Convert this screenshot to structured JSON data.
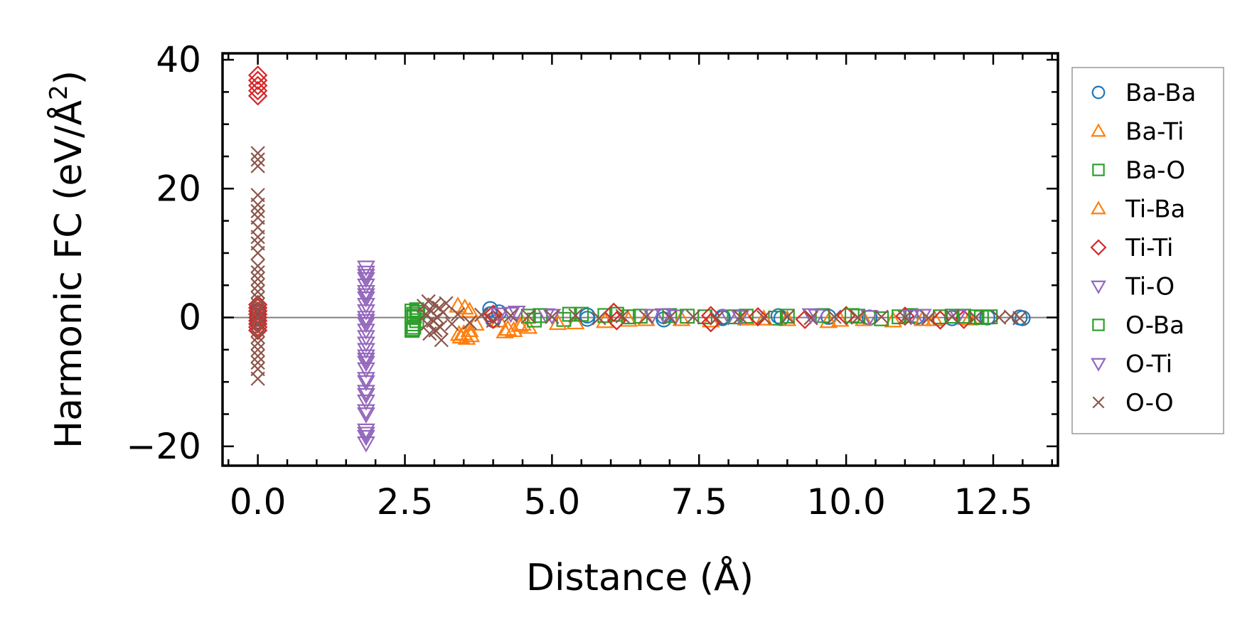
{
  "chart_data": {
    "type": "scatter",
    "xlabel": "Distance (Å)",
    "ylabel_main": "Harmonic FC (eV/Å",
    "ylabel_sup": "2",
    "ylabel_close": ")",
    "xlim": [
      -0.6,
      13.6
    ],
    "ylim": [
      -23,
      41
    ],
    "xticks": [
      0.0,
      2.5,
      5.0,
      7.5,
      10.0,
      12.5
    ],
    "xtick_labels": [
      "0.0",
      "2.5",
      "5.0",
      "7.5",
      "10.0",
      "12.5"
    ],
    "xminor_step": 0.5,
    "yticks": [
      -20,
      0,
      20,
      40
    ],
    "ytick_labels": [
      "−20",
      "0",
      "20",
      "40"
    ],
    "yminor_step": 5,
    "zero_line": true,
    "grid": false,
    "legend_position": "outside-right",
    "series": [
      {
        "name": "Ba-Ba",
        "marker": "circle",
        "color": "#1f77b4",
        "points": [
          [
            0,
            0.3
          ],
          [
            0,
            -0.6
          ],
          [
            0,
            1.0
          ],
          [
            0,
            -0.2
          ],
          [
            3.95,
            1.3
          ],
          [
            3.95,
            0.5
          ],
          [
            4.0,
            -0.4
          ],
          [
            4.1,
            0.8
          ],
          [
            5.6,
            0.3
          ],
          [
            5.6,
            -0.2
          ],
          [
            6.9,
            0.2
          ],
          [
            6.9,
            -0.3
          ],
          [
            7.9,
            0.1
          ],
          [
            7.9,
            -0.1
          ],
          [
            8.85,
            0.2
          ],
          [
            8.9,
            -0.1
          ],
          [
            9.7,
            0.1
          ],
          [
            10.4,
            0.0
          ],
          [
            11.2,
            0.1
          ],
          [
            11.8,
            -0.1
          ],
          [
            12.4,
            0.0
          ],
          [
            12.95,
            0.0
          ],
          [
            13.0,
            -0.1
          ]
        ]
      },
      {
        "name": "Ba-Ti",
        "marker": "triangle-up",
        "color": "#ff7f0e",
        "points": [
          [
            3.4,
            1.8
          ],
          [
            3.45,
            -3.0
          ],
          [
            3.5,
            -2.5
          ],
          [
            3.55,
            -3.2
          ],
          [
            3.6,
            1.0
          ],
          [
            3.6,
            -2.0
          ],
          [
            3.7,
            -1.0
          ],
          [
            4.1,
            -0.5
          ],
          [
            4.2,
            -2.2
          ],
          [
            4.35,
            -2.0
          ],
          [
            4.5,
            -1.0
          ],
          [
            4.6,
            -1.5
          ],
          [
            5.4,
            -0.8
          ],
          [
            5.9,
            -0.6
          ],
          [
            6.6,
            -0.3
          ],
          [
            7.7,
            -0.5
          ],
          [
            8.3,
            -0.2
          ],
          [
            9.0,
            -0.3
          ],
          [
            9.7,
            -0.6
          ],
          [
            10.3,
            -0.3
          ],
          [
            10.8,
            -0.5
          ],
          [
            11.5,
            -0.3
          ],
          [
            12.1,
            -0.2
          ]
        ]
      },
      {
        "name": "Ba-O",
        "marker": "square",
        "color": "#2ca02c",
        "points": [
          [
            2.62,
            1.0
          ],
          [
            2.62,
            0.0
          ],
          [
            2.62,
            -1.0
          ],
          [
            2.62,
            -2.0
          ],
          [
            2.65,
            0.5
          ],
          [
            2.65,
            -1.5
          ],
          [
            2.7,
            -0.5
          ],
          [
            2.72,
            0.8
          ],
          [
            4.6,
            0.2
          ],
          [
            4.7,
            -0.4
          ],
          [
            5.3,
            0.5
          ],
          [
            5.2,
            -0.3
          ],
          [
            5.9,
            0.3
          ],
          [
            6.1,
            0.5
          ],
          [
            6.5,
            0.2
          ],
          [
            7.0,
            0.3
          ],
          [
            7.6,
            0.1
          ],
          [
            8.3,
            0.2
          ],
          [
            8.8,
            -0.1
          ],
          [
            9.6,
            0.3
          ],
          [
            10.2,
            0.2
          ],
          [
            10.6,
            -0.2
          ],
          [
            11.1,
            0.3
          ],
          [
            11.6,
            0.1
          ],
          [
            12.0,
            0.2
          ],
          [
            12.3,
            0.0
          ],
          [
            12.45,
            0.1
          ]
        ]
      },
      {
        "name": "Ti-Ba",
        "marker": "triangle-up",
        "color": "#ff7f0e",
        "points": [
          [
            3.42,
            -2.6
          ],
          [
            3.52,
            1.5
          ],
          [
            3.62,
            -2.8
          ],
          [
            4.25,
            -1.8
          ],
          [
            4.45,
            -1.2
          ],
          [
            5.1,
            -0.9
          ],
          [
            6.3,
            -0.4
          ],
          [
            7.2,
            -0.3
          ],
          [
            8.6,
            -0.2
          ],
          [
            9.9,
            -0.4
          ],
          [
            11.3,
            -0.3
          ]
        ]
      },
      {
        "name": "Ti-Ti",
        "marker": "diamond",
        "color": "#d62728",
        "points": [
          [
            0,
            37.6
          ],
          [
            0,
            36.8
          ],
          [
            0,
            36.0
          ],
          [
            0,
            35.2
          ],
          [
            0,
            34.4
          ],
          [
            0,
            2.0
          ],
          [
            0,
            1.5
          ],
          [
            0,
            1.0
          ],
          [
            0,
            0.5
          ],
          [
            0,
            0.0
          ],
          [
            0,
            -0.5
          ],
          [
            0,
            -1.0
          ],
          [
            0,
            -1.5
          ],
          [
            0,
            -2.0
          ],
          [
            4.0,
            -0.3
          ],
          [
            4.0,
            0.5
          ],
          [
            6.05,
            0.8
          ],
          [
            6.1,
            -0.5
          ],
          [
            7.7,
            -0.8
          ],
          [
            7.7,
            0.3
          ],
          [
            8.5,
            0.1
          ],
          [
            9.3,
            -0.3
          ],
          [
            10.0,
            0.3
          ],
          [
            11.0,
            0.2
          ],
          [
            11.6,
            -0.4
          ],
          [
            12.0,
            -0.3
          ]
        ]
      },
      {
        "name": "Ti-O",
        "marker": "triangle-down",
        "color": "#9467bd",
        "points": [
          [
            1.84,
            7.8
          ],
          [
            1.84,
            7.0
          ],
          [
            1.84,
            6.0
          ],
          [
            1.84,
            5.0
          ],
          [
            1.84,
            4.0
          ],
          [
            1.84,
            3.0
          ],
          [
            1.84,
            2.0
          ],
          [
            1.84,
            1.0
          ],
          [
            1.84,
            0.0
          ],
          [
            1.84,
            -1.0
          ],
          [
            1.84,
            -2.0
          ],
          [
            1.84,
            -3.0
          ],
          [
            1.84,
            -4.0
          ],
          [
            1.84,
            -5.0
          ],
          [
            1.84,
            -6.0
          ],
          [
            1.84,
            -7.0
          ],
          [
            1.84,
            -8.0
          ],
          [
            1.84,
            -10.0
          ],
          [
            1.84,
            -11.5
          ],
          [
            1.84,
            -13.0
          ],
          [
            1.84,
            -14.5
          ],
          [
            1.84,
            -17.5
          ],
          [
            1.84,
            -18.5
          ],
          [
            1.84,
            -19.5
          ],
          [
            4.1,
            0.5
          ],
          [
            4.4,
            0.8
          ],
          [
            4.9,
            0.4
          ],
          [
            6.7,
            0.3
          ],
          [
            7.1,
            0.2
          ],
          [
            8.0,
            0.2
          ],
          [
            9.4,
            0.4
          ],
          [
            10.4,
            0.1
          ],
          [
            11.3,
            0.3
          ],
          [
            11.9,
            0.2
          ]
        ]
      },
      {
        "name": "O-Ba",
        "marker": "square",
        "color": "#2ca02c",
        "points": [
          [
            2.63,
            -1.8
          ],
          [
            2.66,
            0.2
          ],
          [
            2.7,
            1.2
          ],
          [
            4.8,
            0.3
          ],
          [
            5.5,
            0.5
          ],
          [
            6.3,
            0.1
          ],
          [
            7.3,
            0.2
          ],
          [
            8.1,
            0.1
          ],
          [
            9.0,
            0.2
          ],
          [
            10.1,
            0.3
          ],
          [
            10.9,
            0.1
          ],
          [
            11.8,
            0.2
          ],
          [
            12.2,
            0.1
          ]
        ]
      },
      {
        "name": "O-Ti",
        "marker": "triangle-down",
        "color": "#9467bd",
        "points": [
          [
            1.84,
            6.5
          ],
          [
            1.84,
            3.5
          ],
          [
            1.84,
            -0.5
          ],
          [
            1.84,
            -6.5
          ],
          [
            1.84,
            -9.5
          ],
          [
            1.84,
            -12.0
          ],
          [
            1.84,
            -15.0
          ],
          [
            1.84,
            -18.0
          ],
          [
            4.3,
            0.6
          ],
          [
            5.0,
            0.3
          ],
          [
            6.9,
            0.4
          ],
          [
            8.2,
            0.1
          ],
          [
            9.5,
            0.3
          ],
          [
            11.1,
            0.2
          ]
        ]
      },
      {
        "name": "O-O",
        "marker": "x",
        "color": "#8c564b",
        "points": [
          [
            0,
            25.5
          ],
          [
            0,
            24.5
          ],
          [
            0,
            23.5
          ],
          [
            0,
            19.0
          ],
          [
            0,
            17.5
          ],
          [
            0,
            16.5
          ],
          [
            0,
            15.5
          ],
          [
            0,
            14.0
          ],
          [
            0,
            12.5
          ],
          [
            0,
            11.5
          ],
          [
            0,
            10.0
          ],
          [
            0,
            8.0
          ],
          [
            0,
            7.0
          ],
          [
            0,
            6.0
          ],
          [
            0,
            5.0
          ],
          [
            0,
            4.0
          ],
          [
            0,
            3.0
          ],
          [
            0,
            2.0
          ],
          [
            0,
            1.0
          ],
          [
            0,
            0.0
          ],
          [
            0,
            -1.0
          ],
          [
            0,
            -2.0
          ],
          [
            0,
            -3.0
          ],
          [
            0,
            -4.0
          ],
          [
            0,
            -5.0
          ],
          [
            0,
            -6.0
          ],
          [
            0,
            -7.0
          ],
          [
            0,
            -8.0
          ],
          [
            0,
            -9.5
          ],
          [
            2.82,
            1.8
          ],
          [
            2.85,
            0.5
          ],
          [
            2.88,
            -1.0
          ],
          [
            2.9,
            2.5
          ],
          [
            2.92,
            -2.5
          ],
          [
            2.95,
            1.0
          ],
          [
            2.98,
            -0.5
          ],
          [
            3.0,
            2.0
          ],
          [
            3.02,
            -2.0
          ],
          [
            3.05,
            0.0
          ],
          [
            3.08,
            1.5
          ],
          [
            3.1,
            -1.5
          ],
          [
            3.12,
            -3.5
          ],
          [
            3.15,
            0.8
          ],
          [
            3.2,
            2.2
          ],
          [
            3.3,
            -1.0
          ],
          [
            3.4,
            0.5
          ],
          [
            3.6,
            -0.8
          ],
          [
            3.8,
            0.4
          ],
          [
            4.0,
            -0.5
          ],
          [
            4.3,
            0.3
          ],
          [
            4.6,
            0.2
          ],
          [
            5.0,
            0.1
          ],
          [
            5.4,
            0.3
          ],
          [
            5.8,
            -0.1
          ],
          [
            6.2,
            0.2
          ],
          [
            6.6,
            0.1
          ],
          [
            7.0,
            0.0
          ],
          [
            7.4,
            0.1
          ],
          [
            7.8,
            -0.1
          ],
          [
            8.2,
            0.1
          ],
          [
            8.6,
            0.0
          ],
          [
            9.0,
            0.1
          ],
          [
            9.4,
            -0.1
          ],
          [
            9.8,
            0.1
          ],
          [
            10.2,
            0.0
          ],
          [
            10.6,
            0.1
          ],
          [
            11.0,
            0.0
          ],
          [
            11.4,
            -0.1
          ],
          [
            11.8,
            0.1
          ],
          [
            12.2,
            0.0
          ],
          [
            12.6,
            0.0
          ],
          [
            12.8,
            0.1
          ],
          [
            12.95,
            -0.1
          ]
        ]
      }
    ]
  }
}
